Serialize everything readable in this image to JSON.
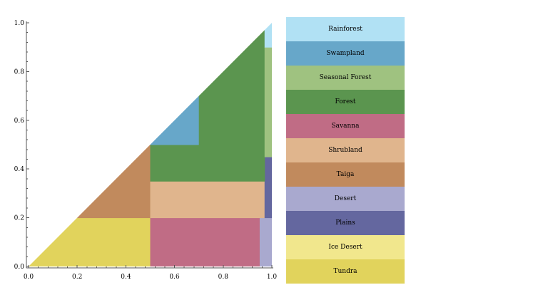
{
  "chart_data": {
    "type": "heatmap",
    "title": "",
    "xlabel": "",
    "ylabel": "",
    "xlim": [
      0,
      1
    ],
    "ylim": [
      0,
      1
    ],
    "x_ticks": [
      "0.0",
      "0.2",
      "0.4",
      "0.6",
      "0.8",
      "1.0"
    ],
    "y_ticks": [
      "0.0",
      "0.2",
      "0.4",
      "0.6",
      "0.8",
      "1.0"
    ],
    "region_shape": "triangle below diagonal y = x",
    "legend_position": "right",
    "legend": [
      {
        "label": "Rainforest",
        "color": "#b1e1f4"
      },
      {
        "label": "Swampland",
        "color": "#67a7c9"
      },
      {
        "label": "Seasonal Forest",
        "color": "#9fc280"
      },
      {
        "label": "Forest",
        "color": "#5b954f"
      },
      {
        "label": "Savanna",
        "color": "#c06c85"
      },
      {
        "label": "Shrubland",
        "color": "#e0b58d"
      },
      {
        "label": "Taiga",
        "color": "#c18a5d"
      },
      {
        "label": "Desert",
        "color": "#a9a9cf"
      },
      {
        "label": "Plains",
        "color": "#64679f"
      },
      {
        "label": "Ice Desert",
        "color": "#f1e78d"
      },
      {
        "label": "Tundra",
        "color": "#e1d35c"
      }
    ],
    "regions": [
      {
        "biome": "Tundra",
        "x0": 0.0,
        "x1": 0.5,
        "y0": 0.0,
        "y1": 0.2
      },
      {
        "biome": "Taiga",
        "x0": 0.2,
        "x1": 0.5,
        "y0": 0.2,
        "y1": 0.5
      },
      {
        "biome": "Savanna",
        "x0": 0.5,
        "x1": 0.95,
        "y0": 0.0,
        "y1": 0.2
      },
      {
        "biome": "Desert",
        "x0": 0.95,
        "x1": 1.0,
        "y0": 0.0,
        "y1": 0.2
      },
      {
        "biome": "Shrubland",
        "x0": 0.5,
        "x1": 0.97,
        "y0": 0.2,
        "y1": 0.35
      },
      {
        "biome": "Plains",
        "x0": 0.97,
        "x1": 1.0,
        "y0": 0.2,
        "y1": 0.45
      },
      {
        "biome": "Forest",
        "x0": 0.5,
        "x1": 0.97,
        "y0": 0.35,
        "y1": 0.5
      },
      {
        "biome": "Swampland",
        "x0": 0.5,
        "x1": 0.7,
        "y0": 0.5,
        "y1": 0.7
      },
      {
        "biome": "Forest",
        "x0": 0.7,
        "x1": 0.97,
        "y0": 0.5,
        "y1": 0.97
      },
      {
        "biome": "Seasonal Forest",
        "x0": 0.97,
        "x1": 1.0,
        "y0": 0.45,
        "y1": 0.9
      },
      {
        "biome": "Rainforest",
        "x0": 0.97,
        "x1": 1.0,
        "y0": 0.9,
        "y1": 1.0
      }
    ]
  }
}
